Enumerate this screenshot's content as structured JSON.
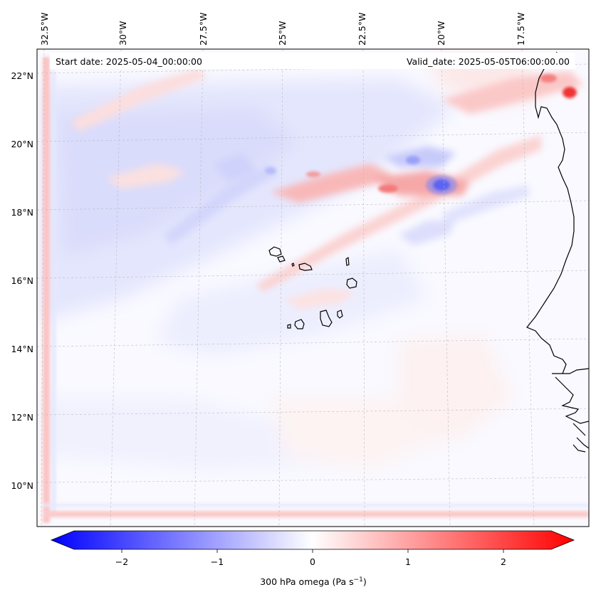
{
  "chart_data": {
    "type": "map",
    "variable_label": "300 hPa omega (Pa s",
    "variable_units_exponent": "−1",
    "variable_label_tail": ")",
    "start_date_text": "Start date: 2025-05-04_00:00:00",
    "valid_date_text": "Valid_date: 2025-05-05T06:00:00.00",
    "lon_ticks": [
      "32.5°W",
      "30°W",
      "27.5°W",
      "25°W",
      "22.5°W",
      "20°W",
      "17.5°W"
    ],
    "lon_tick_values": [
      -32.5,
      -30,
      -27.5,
      -25,
      -22.5,
      -20,
      -17.5
    ],
    "lat_ticks": [
      "22°N",
      "20°N",
      "18°N",
      "16°N",
      "14°N",
      "12°N",
      "10°N"
    ],
    "lat_tick_values": [
      22,
      20,
      18,
      16,
      14,
      12,
      10
    ],
    "extent": {
      "lon_min": -33.6,
      "lon_max": -16.0,
      "lat_min": 8.9,
      "lat_max": 22.8
    },
    "colorbar": {
      "ticks": [
        "−2",
        "−1",
        "0",
        "1",
        "2"
      ],
      "tick_values": [
        -2,
        -1,
        0,
        1,
        2
      ],
      "range": [
        -2.5,
        2.5
      ],
      "extend": "both",
      "colormap": "bwr",
      "color_low": "#0000ff",
      "color_mid": "#ffffff",
      "color_high": "#ff0000"
    },
    "coastline_color": "#000000",
    "grid": true
  }
}
